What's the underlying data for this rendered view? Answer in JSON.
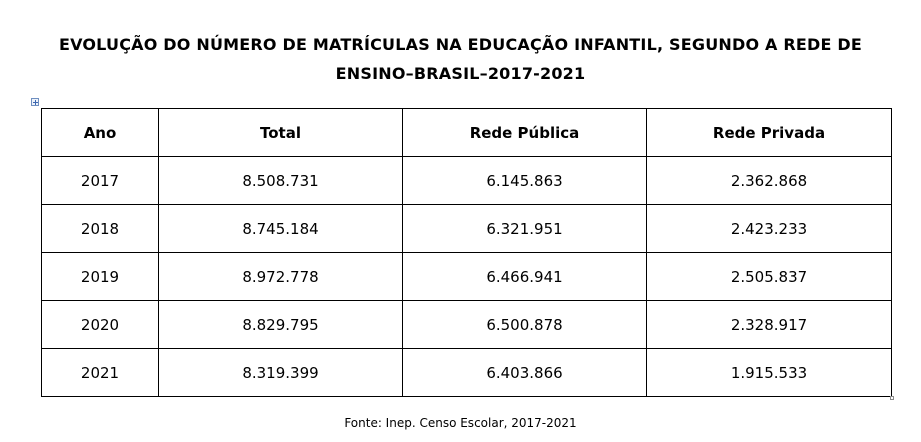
{
  "title": {
    "line1": "EVOLUÇÃO DO NÚMERO DE MATRÍCULAS NA EDUCAÇÃO INFANTIL, SEGUNDO A REDE DE",
    "line2": "ENSINO–BRASIL–2017-2021"
  },
  "table": {
    "headers": [
      "Ano",
      "Total",
      "Rede Pública",
      "Rede Privada"
    ],
    "rows": [
      [
        "2017",
        "8.508.731",
        "6.145.863",
        "2.362.868"
      ],
      [
        "2018",
        "8.745.184",
        "6.321.951",
        "2.423.233"
      ],
      [
        "2019",
        "8.972.778",
        "6.466.941",
        "2.505.837"
      ],
      [
        "2020",
        "8.829.795",
        "6.500.878",
        "2.328.917"
      ],
      [
        "2021",
        "8.319.399",
        "6.403.866",
        "1.915.533"
      ]
    ]
  },
  "source": "Fonte: Inep. Censo Escolar, 2017-2021",
  "icons": {
    "table_move_handle": "table-move-handle-icon",
    "table_resize_handle": "table-resize-handle-icon"
  },
  "colors": {
    "text": "#000000",
    "border": "#000000",
    "background": "#ffffff",
    "handle_accent": "#3d67b0"
  }
}
